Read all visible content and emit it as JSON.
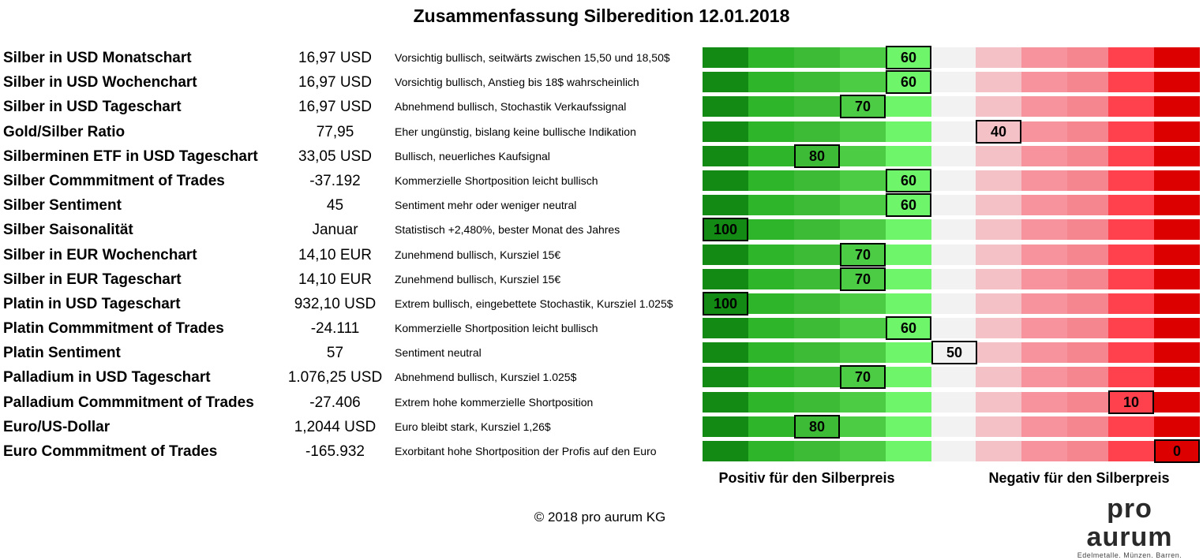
{
  "title": "Zusammenfassung Silberedition 12.01.2018",
  "chart_data": {
    "type": "table",
    "scale": {
      "min": 0,
      "max": 100,
      "step": 10,
      "left_label": "Positiv für den Silberpreis",
      "right_label": "Negativ für den Silberpreis",
      "colors": [
        "#138a13",
        "#2fb52a",
        "#3dbb36",
        "#4ccc45",
        "#6ff56a",
        "#f2f2f2",
        "#f4c2c6",
        "#f6939c",
        "#f58690",
        "#ff414d",
        "#dd0000"
      ]
    },
    "rows": [
      {
        "label": "Silber in USD Monatschart",
        "value": "16,97 USD",
        "comment": "Vorsichtig bullisch, seitwärts zwischen 15,50 und 18,50$",
        "score": 60
      },
      {
        "label": "Silber in USD Wochenchart",
        "value": "16,97 USD",
        "comment": "Vorsichtig bullisch, Anstieg bis 18$ wahrscheinlich",
        "score": 60
      },
      {
        "label": "Silber in USD Tageschart",
        "value": "16,97 USD",
        "comment": "Abnehmend bullisch, Stochastik Verkaufssignal",
        "score": 70
      },
      {
        "label": "Gold/Silber Ratio",
        "value": "77,95",
        "comment": "Eher ungünstig, bislang keine bullische Indikation",
        "score": 40
      },
      {
        "label": "Silberminen ETF in USD Tageschart",
        "value": "33,05 USD",
        "comment": "Bullisch, neuerliches Kaufsignal",
        "score": 80
      },
      {
        "label": "Silber Commmitment of Trades",
        "value": "-37.192",
        "comment": "Kommerzielle Shortposition leicht bullisch",
        "score": 60
      },
      {
        "label": "Silber Sentiment",
        "value": "45",
        "comment": "Sentiment mehr oder weniger neutral",
        "score": 60
      },
      {
        "label": "Silber Saisonalität",
        "value": "Januar",
        "comment": "Statistisch +2,480%, bester Monat des Jahres",
        "score": 100
      },
      {
        "label": "Silber in EUR Wochenchart",
        "value": "14,10 EUR",
        "comment": "Zunehmend bullisch, Kursziel 15€",
        "score": 70
      },
      {
        "label": "Silber in EUR Tageschart",
        "value": "14,10 EUR",
        "comment": "Zunehmend bullisch, Kursziel 15€",
        "score": 70
      },
      {
        "label": "Platin in USD Tageschart",
        "value": "932,10 USD",
        "comment": "Extrem bullisch, eingebettete Stochastik, Kursziel 1.025$",
        "score": 100
      },
      {
        "label": "Platin Commmitment of Trades",
        "value": "-24.111",
        "comment": "Kommerzielle Shortposition leicht bullisch",
        "score": 60
      },
      {
        "label": "Platin Sentiment",
        "value": "57",
        "comment": "Sentiment neutral",
        "score": 50
      },
      {
        "label": "Palladium in USD Tageschart",
        "value": "1.076,25 USD",
        "comment": "Abnehmend bullisch, Kursziel 1.025$",
        "score": 70
      },
      {
        "label": "Palladium Commmitment of Trades",
        "value": "-27.406",
        "comment": "Extrem hohe kommerzielle Shortposition",
        "score": 10
      },
      {
        "label": "Euro/US-Dollar",
        "value": "1,2044 USD",
        "comment": "Euro bleibt stark, Kursziel 1,26$",
        "score": 80
      },
      {
        "label": "Euro Commmitment of Trades",
        "value": "-165.932",
        "comment": "Exorbitant hohe Shortposition der Profis auf den Euro",
        "score": 0
      }
    ]
  },
  "footer": {
    "copyright": "© 2018 pro aurum KG",
    "logo_name": "pro aurum",
    "logo_tagline": "Edelmetalle. Münzen. Barren."
  }
}
